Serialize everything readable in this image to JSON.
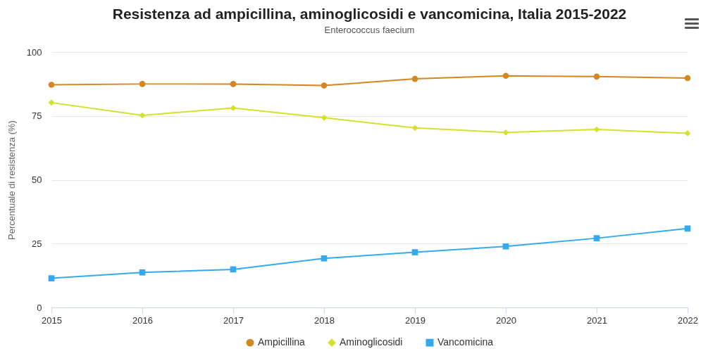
{
  "chart_data": {
    "type": "line",
    "title": "Resistenza ad ampicillina, aminoglicosidi e vancomicina, Italia 2015-2022",
    "subtitle": "Enterococcus faecium",
    "ylabel": "Percentuale di resistenza (%)",
    "categories": [
      "2015",
      "2016",
      "2017",
      "2018",
      "2019",
      "2020",
      "2021",
      "2022"
    ],
    "ylim": [
      0,
      100
    ],
    "yticks": [
      0,
      25,
      50,
      75,
      100
    ],
    "grid": "y",
    "legend": "bottom",
    "line_style": "solid",
    "series": [
      {
        "name": "Ampicillina",
        "color": "#d4861f",
        "marker": "circle",
        "values": [
          87.2,
          87.5,
          87.5,
          86.9,
          89.5,
          90.7,
          90.4,
          89.8
        ]
      },
      {
        "name": "Aminoglicosidi",
        "color": "#d4e02a",
        "marker": "diamond",
        "values": [
          80.2,
          75.2,
          78.1,
          74.3,
          70.3,
          68.5,
          69.7,
          68.2
        ]
      },
      {
        "name": "Vancomicina",
        "color": "#33aaf0",
        "marker": "square",
        "values": [
          11.4,
          13.7,
          14.9,
          19.2,
          21.6,
          23.9,
          27.1,
          30.9
        ]
      }
    ]
  }
}
